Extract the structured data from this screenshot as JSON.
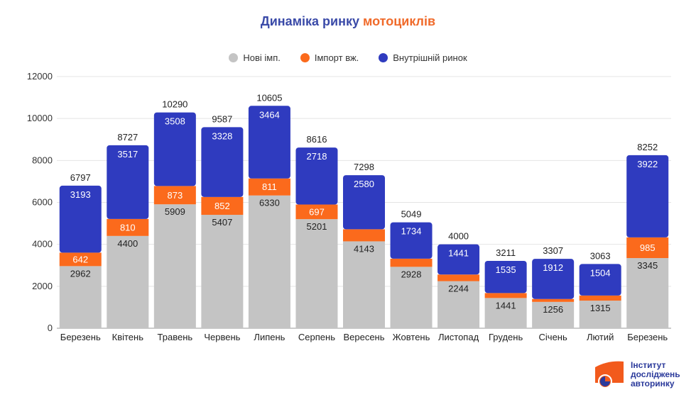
{
  "chart_data": {
    "type": "bar",
    "stacked": true,
    "title": {
      "part1": "Динаміка ринку",
      "part2": "мотоциклів"
    },
    "categories": [
      "Березень",
      "Квітень",
      "Травень",
      "Червень",
      "Липень",
      "Серпень",
      "Вересень",
      "Жовтень",
      "Листопад",
      "Грудень",
      "Січень",
      "Лютий",
      "Березень"
    ],
    "series": [
      {
        "name": "Нові імп.",
        "color": "#c4c4c4",
        "values": [
          2962,
          4400,
          5909,
          5407,
          6330,
          5201,
          4143,
          2928,
          2244,
          1441,
          1256,
          1315,
          3345
        ]
      },
      {
        "name": "Імпорт вж.",
        "color": "#fb6a1c",
        "values": [
          642,
          810,
          873,
          852,
          811,
          697,
          575,
          387,
          315,
          235,
          139,
          244,
          985
        ]
      },
      {
        "name": "Внутрішній ринок",
        "color": "#2f3bbf",
        "values": [
          3193,
          3517,
          3508,
          3328,
          3464,
          2718,
          2580,
          1734,
          1441,
          1535,
          1912,
          1504,
          3922
        ]
      }
    ],
    "totals": [
      6797,
      8727,
      10290,
      9587,
      10605,
      8616,
      7298,
      5049,
      4000,
      3211,
      3307,
      3063,
      8252
    ],
    "ylim": [
      0,
      12000
    ],
    "yticks": [
      0,
      2000,
      4000,
      6000,
      8000,
      10000,
      12000
    ],
    "grid": true,
    "legend": "top-center",
    "xlabel": "",
    "ylabel": ""
  },
  "logo": {
    "line1": "Інститут",
    "line2": "досліджень",
    "line3": "авторинку"
  }
}
